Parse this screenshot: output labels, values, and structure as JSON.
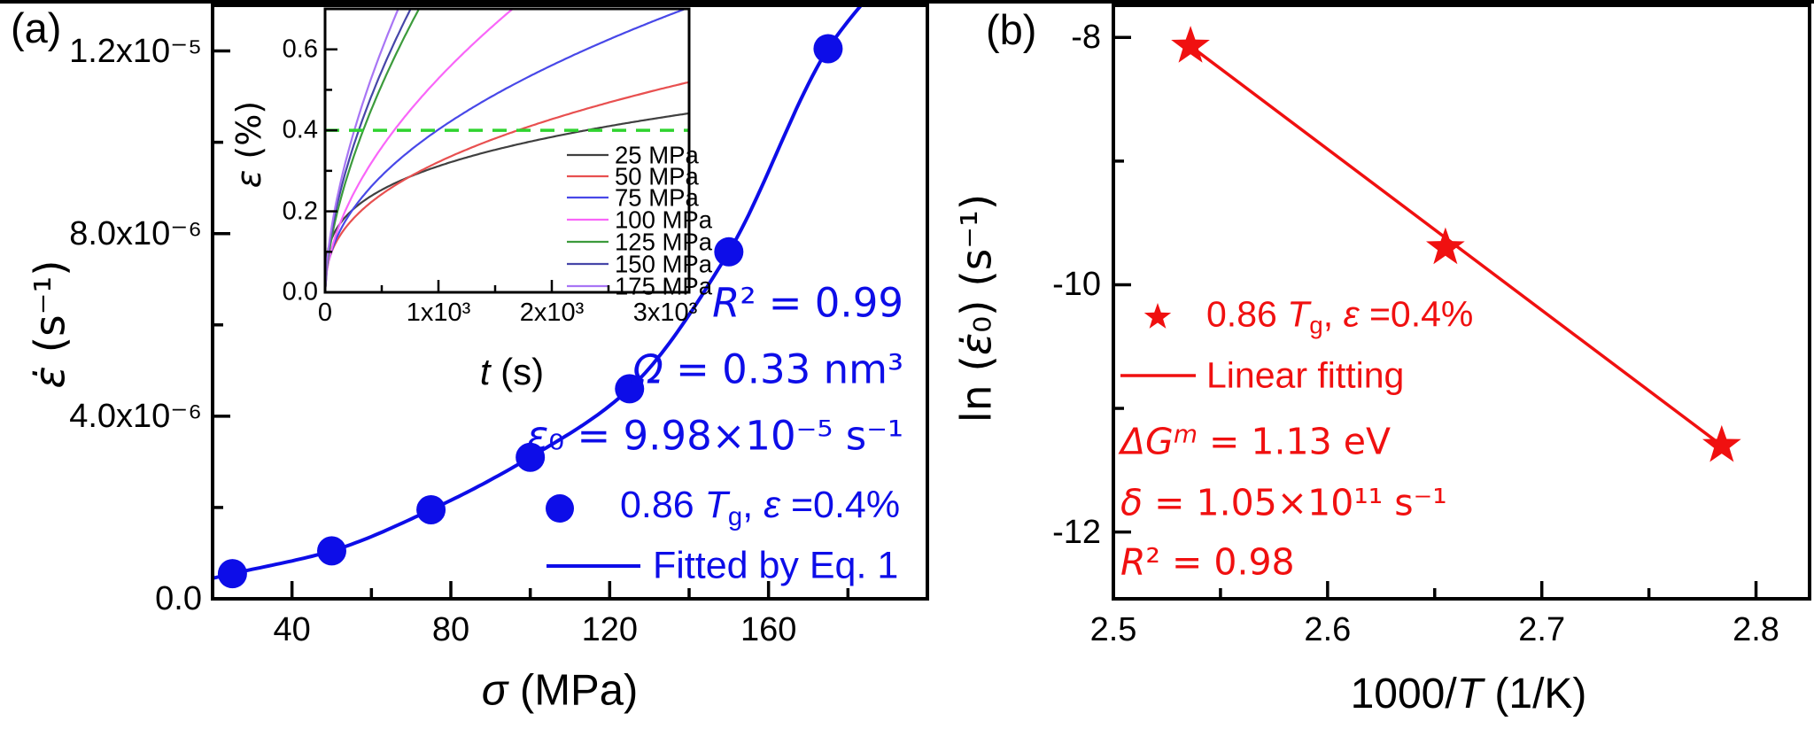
{
  "figure": {
    "panel_a": {
      "label": "(a)",
      "xlabel_rich": [
        {
          "t": "σ",
          "s": "i"
        },
        {
          "t": " (MPa)",
          "s": "n"
        }
      ],
      "ylabel_rich": [
        {
          "t": "ε̇",
          "s": "i"
        },
        {
          "t": " (s⁻¹)",
          "s": "n"
        }
      ],
      "ann_r2": [
        {
          "t": "R",
          "s": "i"
        },
        {
          "t": "² = 0.99",
          "s": "n"
        }
      ],
      "ann_omega": [
        {
          "t": "Ω",
          "s": "i"
        },
        {
          "t": " = 0.33 nm³",
          "s": "n"
        }
      ],
      "ann_eps0": [
        {
          "t": "ε",
          "s": "i"
        },
        {
          "t": "₀",
          "s": "n"
        },
        {
          "t": " = 9.98×10⁻⁵ s⁻¹",
          "s": "n"
        }
      ],
      "legend_1": [
        {
          "t": "0.86 ",
          "s": "n"
        },
        {
          "t": "T",
          "s": "i"
        },
        {
          "t": "g",
          "s": "sub"
        },
        {
          "t": ", ",
          "s": "n"
        },
        {
          "t": "ε",
          "s": "i"
        },
        {
          "t": " =0.4%",
          "s": "n"
        }
      ],
      "legend_2": "Fitted by Eq. 1"
    },
    "inset": {
      "xlabel_rich": [
        {
          "t": "t",
          "s": "i"
        },
        {
          "t": " (s)",
          "s": "n"
        }
      ],
      "ylabel_rich": [
        {
          "t": "ε",
          "s": "i"
        },
        {
          "t": " (%)",
          "s": "n"
        }
      ]
    },
    "panel_b": {
      "label": "(b)",
      "xlabel_rich": [
        {
          "t": "1000/",
          "s": "n"
        },
        {
          "t": "T",
          "s": "i"
        },
        {
          "t": " (1/K)",
          "s": "n"
        }
      ],
      "ylabel_rich": [
        {
          "t": "ln (",
          "s": "n"
        },
        {
          "t": "ε̇",
          "s": "i"
        },
        {
          "t": "₀",
          "s": "n"
        },
        {
          "t": ") (s⁻¹)",
          "s": "n"
        }
      ],
      "legend_1": [
        {
          "t": "0.86 ",
          "s": "n"
        },
        {
          "t": "T",
          "s": "i"
        },
        {
          "t": "g",
          "s": "sub"
        },
        {
          "t": ", ",
          "s": "n"
        },
        {
          "t": "ε",
          "s": "i"
        },
        {
          "t": " =0.4%",
          "s": "n"
        }
      ],
      "legend_2": "Linear fitting",
      "ann_dg": [
        {
          "t": "ΔG",
          "s": "i"
        },
        {
          "t": "m",
          "s": "isup"
        },
        {
          "t": " = 1.13 eV",
          "s": "n"
        }
      ],
      "ann_delta": [
        {
          "t": "δ",
          "s": "i"
        },
        {
          "t": " = 1.05×10¹¹ s⁻¹",
          "s": "n"
        }
      ],
      "ann_r2": [
        {
          "t": "R",
          "s": "i"
        },
        {
          "t": "² = 0.98",
          "s": "n"
        }
      ]
    }
  },
  "chart_data": [
    {
      "id": "panel_a",
      "type": "scatter",
      "xlabel": "σ (MPa)",
      "ylabel": "ε̇ (s⁻¹)",
      "xlim": [
        20,
        200
      ],
      "ylim": [
        0,
        1.3e-05
      ],
      "x_major_ticks": [
        40,
        80,
        120,
        160
      ],
      "x_tick_labels": [
        "40",
        "80",
        "120",
        "160"
      ],
      "x_minor_ticks": [
        60,
        100,
        140,
        180
      ],
      "y_major_ticks": [
        0,
        4e-06,
        8e-06,
        1.2e-05
      ],
      "y_tick_labels": [
        "0.0",
        "4.0x10⁻⁶",
        "8.0x10⁻⁶",
        "1.2x10⁻⁵"
      ],
      "y_minor_ticks": [
        2e-06,
        6e-06,
        1e-05
      ],
      "accent_color": "#0D0DE8",
      "series": [
        {
          "name": "0.86 Tg, ε =0.4%",
          "marker": "circle",
          "color": "#0D0DE8",
          "x": [
            25,
            50,
            75,
            100,
            125,
            150,
            175
          ],
          "y": [
            5.5e-07,
            1.05e-06,
            1.95e-06,
            3.1e-06,
            4.6e-06,
            7.6e-06,
            1.205e-05
          ]
        }
      ],
      "fit": {
        "name": "Fitted by Eq. 1",
        "color": "#0D0DE8",
        "anchors": [
          [
            20,
            4.5e-07
          ],
          [
            25,
            5.5e-07
          ],
          [
            50,
            1.05e-06
          ],
          [
            75,
            1.95e-06
          ],
          [
            100,
            3.1e-06
          ],
          [
            125,
            4.6e-06
          ],
          [
            150,
            7.6e-06
          ],
          [
            175,
            1.205e-05
          ],
          [
            187,
            1.34e-05
          ]
        ]
      },
      "annotations": [
        "R² = 0.99",
        "Ω = 0.33 nm³",
        "ε₀ = 9.98×10⁻⁵ s⁻¹"
      ],
      "fit_params": {
        "R2": 0.99,
        "omega_nm3": 0.33,
        "eps0_per_s": 9.98e-05
      },
      "legend_position": "inside-bottom-right",
      "grid": false
    },
    {
      "id": "inset",
      "type": "line",
      "xlabel": "t (s)",
      "ylabel": "ε (%)",
      "xlim": [
        0,
        3211
      ],
      "ylim": [
        0,
        0.7
      ],
      "x_major_ticks": [
        0,
        1000,
        2000,
        3000
      ],
      "x_tick_labels": [
        "0",
        "1x10³",
        "2x10³",
        "3x10³"
      ],
      "x_minor_ticks": [
        500,
        1500,
        2500
      ],
      "y_major_ticks": [
        0,
        0.2,
        0.4,
        0.6
      ],
      "y_tick_labels": [
        "0.0",
        "0.2",
        "0.4",
        "0.6"
      ],
      "y_minor_ticks": [
        0.1,
        0.3,
        0.5
      ],
      "ref_line": {
        "y": 0.4,
        "style": "dashed",
        "color": "#2FD32F"
      },
      "series": [
        {
          "name": "25 MPa",
          "color": "#404040",
          "t_reach_04pct_s": 2300,
          "shape_power": 0.3,
          "strain_pct_at_3200s": 0.44
        },
        {
          "name": "50 MPa",
          "color": "#E85050",
          "t_reach_04pct_s": 1700,
          "shape_power": 0.41,
          "strain_pct_at_3200s": 0.52
        },
        {
          "name": "75 MPa",
          "color": "#4848E8",
          "t_reach_04pct_s": 990,
          "shape_power": 0.48,
          "strain_pct_at_3200s": 0.7
        },
        {
          "name": "100 MPa",
          "color": "#F966F9",
          "t_reach_04pct_s": 609,
          "shape_power": 0.56,
          "t_reach_07pct_s": 1664
        },
        {
          "name": "125 MPa",
          "color": "#3C9B3C",
          "t_reach_04pct_s": 336,
          "shape_power": 0.62,
          "t_reach_07pct_s": 828
        },
        {
          "name": "150 MPa",
          "color": "#4646A8",
          "t_reach_04pct_s": 297,
          "shape_power": 0.6,
          "t_reach_07pct_s": 750
        },
        {
          "name": "175 MPa",
          "color": "#A875F5",
          "t_reach_04pct_s": 258,
          "shape_power": 0.61,
          "t_reach_07pct_s": 648
        }
      ],
      "legend_position": "inside-bottom-right",
      "grid": false
    },
    {
      "id": "panel_b",
      "type": "scatter",
      "xlabel": "1000/T (1/K)",
      "ylabel": "ln (ε̇₀) (s⁻¹)",
      "xlim": [
        2.5,
        2.825
      ],
      "ylim": [
        -12.54,
        -7.74
      ],
      "x_major_ticks": [
        2.5,
        2.6,
        2.7,
        2.8
      ],
      "x_tick_labels": [
        "2.5",
        "2.6",
        "2.7",
        "2.8"
      ],
      "x_minor_ticks": [
        2.55,
        2.65,
        2.75
      ],
      "y_major_ticks": [
        -8,
        -10,
        -12
      ],
      "y_tick_labels": [
        "-8",
        "-10",
        "-12"
      ],
      "y_minor_ticks": [
        -9,
        -11
      ],
      "accent_color": "#F01010",
      "series": [
        {
          "name": "0.86 Tg, ε =0.4%",
          "marker": "star",
          "color": "#F01010",
          "x": [
            2.536,
            2.655,
            2.784
          ],
          "y": [
            -8.07,
            -9.7,
            -11.3
          ]
        }
      ],
      "fit": {
        "name": "Linear fitting",
        "color": "#F01010",
        "line": [
          [
            2.536,
            -8.07
          ],
          [
            2.784,
            -11.3
          ]
        ]
      },
      "annotations": [
        "ΔGᵐ = 1.13 eV",
        "δ = 1.05×10¹¹ s⁻¹",
        "R² = 0.98"
      ],
      "fit_params": {
        "dGm_eV": 1.13,
        "delta_per_s": 105000000000.0,
        "R2": 0.98
      },
      "legend_position": "inside-middle-left",
      "grid": false
    }
  ]
}
